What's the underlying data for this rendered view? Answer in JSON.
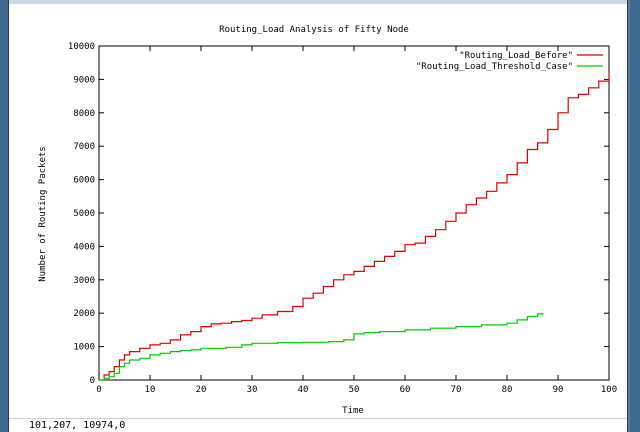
{
  "status": {
    "coords": "101,207,  10974,0"
  },
  "colors": {
    "before": "#e00000",
    "threshold": "#00cc00"
  },
  "chart_data": {
    "type": "line",
    "title": "Routing_Load Analysis of Fifty Node",
    "xlabel": "Time",
    "ylabel": "Number of Routing Packets",
    "xlim": [
      0,
      100
    ],
    "ylim": [
      0,
      10000
    ],
    "xticks": [
      "0",
      "10",
      "20",
      "30",
      "40",
      "50",
      "60",
      "70",
      "80",
      "90",
      "100"
    ],
    "yticks": [
      "0",
      "1000",
      "2000",
      "3000",
      "4000",
      "5000",
      "6000",
      "7000",
      "8000",
      "9000",
      "10000"
    ],
    "legend_position": "top-right",
    "grid": false,
    "series": [
      {
        "name": "\"Routing_Load_Before\"",
        "color": "#e00000",
        "x": [
          0,
          1,
          2,
          3,
          4,
          5,
          6,
          8,
          10,
          12,
          14,
          16,
          18,
          20,
          22,
          24,
          26,
          28,
          30,
          32,
          35,
          38,
          40,
          42,
          44,
          46,
          48,
          50,
          52,
          54,
          56,
          58,
          60,
          62,
          64,
          66,
          68,
          70,
          72,
          74,
          76,
          78,
          80,
          82,
          84,
          86,
          88,
          90,
          92,
          94,
          96,
          98,
          100
        ],
        "y": [
          0,
          150,
          250,
          400,
          600,
          750,
          850,
          950,
          1050,
          1100,
          1200,
          1350,
          1450,
          1600,
          1680,
          1700,
          1750,
          1780,
          1850,
          1950,
          2050,
          2200,
          2450,
          2600,
          2800,
          3000,
          3150,
          3250,
          3400,
          3550,
          3700,
          3850,
          4050,
          4100,
          4300,
          4500,
          4750,
          5000,
          5250,
          5450,
          5650,
          5900,
          6150,
          6500,
          6900,
          7100,
          7500,
          8000,
          8450,
          8550,
          8750,
          8950,
          9200
        ]
      },
      {
        "name": "\"Routing_Load_Threshold_Case\"",
        "color": "#00cc00",
        "x": [
          0,
          1,
          2,
          3,
          4,
          5,
          6,
          8,
          10,
          12,
          14,
          16,
          18,
          20,
          25,
          28,
          30,
          35,
          40,
          45,
          48,
          50,
          52,
          55,
          60,
          65,
          70,
          75,
          80,
          82,
          84,
          86,
          87
        ],
        "y": [
          0,
          50,
          100,
          200,
          400,
          500,
          600,
          650,
          750,
          800,
          850,
          880,
          900,
          950,
          980,
          1050,
          1100,
          1120,
          1130,
          1150,
          1200,
          1380,
          1420,
          1450,
          1500,
          1550,
          1600,
          1650,
          1700,
          1800,
          1900,
          1980,
          2000
        ]
      }
    ]
  }
}
